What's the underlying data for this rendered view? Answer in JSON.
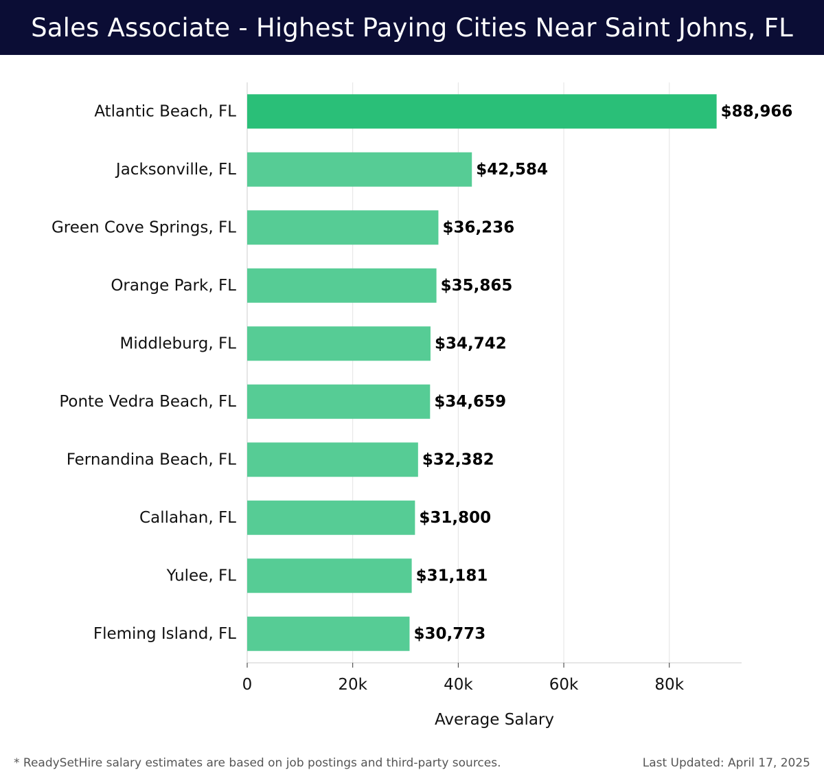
{
  "header": {
    "title": "Sales Associate - Highest Paying Cities Near Saint Johns, FL"
  },
  "chart_data": {
    "type": "bar",
    "orientation": "horizontal",
    "categories": [
      "Atlantic Beach, FL",
      "Jacksonville, FL",
      "Green Cove Springs, FL",
      "Orange Park, FL",
      "Middleburg, FL",
      "Ponte Vedra Beach, FL",
      "Fernandina Beach, FL",
      "Callahan, FL",
      "Yulee, FL",
      "Fleming Island, FL"
    ],
    "values": [
      88966,
      42584,
      36236,
      35865,
      34742,
      34659,
      32382,
      31800,
      31181,
      30773
    ],
    "value_labels": [
      "$88,966",
      "$42,584",
      "$36,236",
      "$35,865",
      "$34,742",
      "$34,659",
      "$32,382",
      "$31,800",
      "$31,181",
      "$30,773"
    ],
    "xlabel": "Average Salary",
    "ylabel": "",
    "xlim": [
      0,
      93700
    ],
    "xticks": [
      0,
      20000,
      40000,
      60000,
      80000
    ],
    "xtick_labels": [
      "0",
      "20k",
      "40k",
      "60k",
      "80k"
    ],
    "grid": true,
    "colors": {
      "top_bar": "#2abf78",
      "bar": "#56cc95",
      "grid": "#e3e3e3",
      "axis": "#cccccc"
    }
  },
  "footer": {
    "note": "* ReadySetHire salary estimates are based on job postings and third-party sources.",
    "updated": "Last Updated: April 17, 2025"
  }
}
